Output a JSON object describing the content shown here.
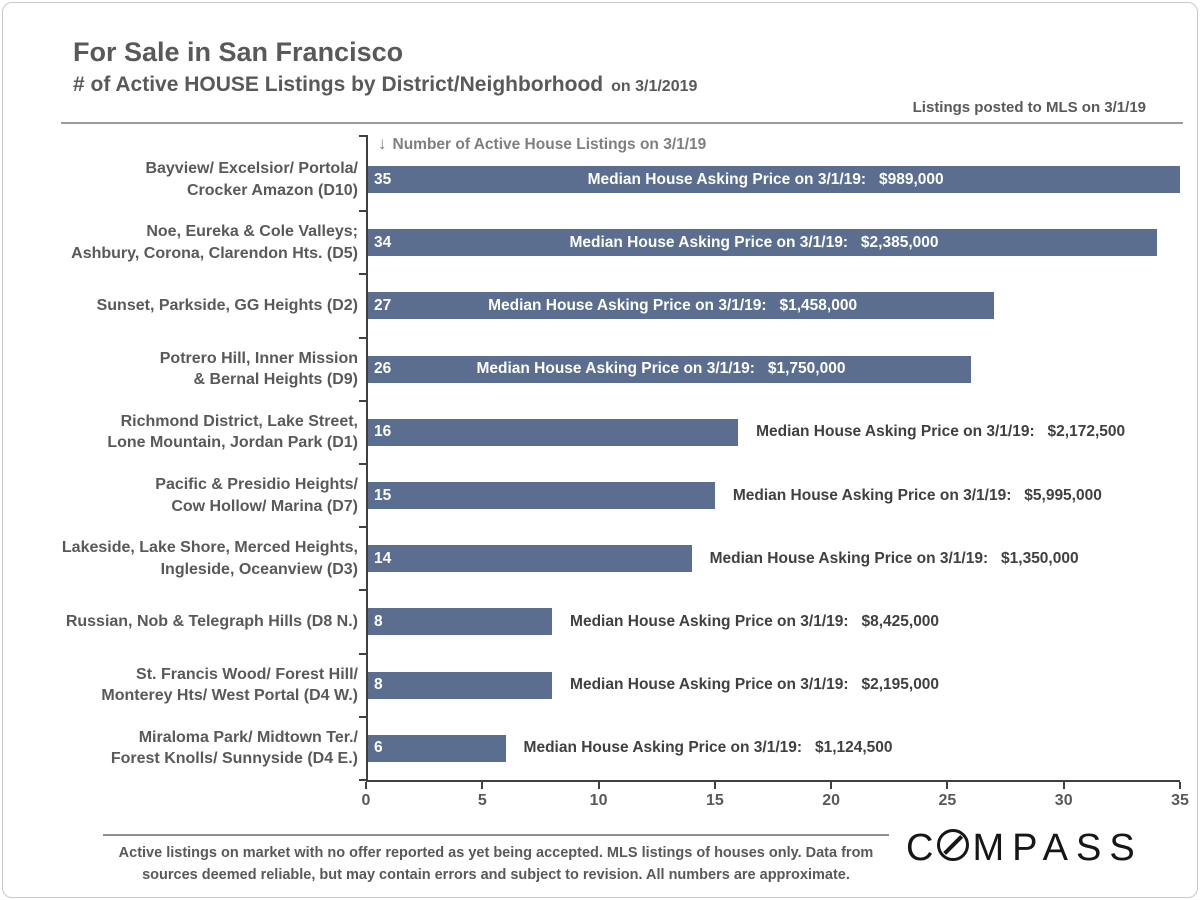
{
  "header": {
    "title": "For Sale in San Francisco",
    "subtitle": "# of Active HOUSE Listings by District/Neighborhood",
    "subtitle_suffix": "on 3/1/2019",
    "mls_note": "Listings posted to MLS on 3/1/19"
  },
  "chart_data": {
    "type": "bar",
    "orientation": "horizontal",
    "axis_annotation_arrow": "↓",
    "axis_annotation": "Number of Active House Listings on 3/1/19",
    "xlim": [
      0,
      35
    ],
    "xticks": [
      0,
      5,
      10,
      15,
      20,
      25,
      30,
      35
    ],
    "grid": false,
    "bar_color": "#5b6e8f",
    "price_label_prefix": "Median House Asking Price on 3/1/19:",
    "categories": [
      "Bayview/ Excelsior/ Portola/ Crocker Amazon (D10)",
      "Noe, Eureka & Cole Valleys; Ashbury, Corona, Clarendon Hts. (D5)",
      "Sunset, Parkside, GG Heights (D2)",
      "Potrero Hill, Inner Mission & Bernal Heights (D9)",
      "Richmond District, Lake Street, Lone Mountain, Jordan Park (D1)",
      "Pacific & Presidio Heights/ Cow Hollow/ Marina (D7)",
      "Lakeside, Lake Shore, Merced Heights, Ingleside, Oceanview (D3)",
      "Russian, Nob & Telegraph Hills (D8 N.)",
      "St. Francis Wood/ Forest Hill/ Monterey Hts/ West Portal (D4 W.)",
      "Miraloma Park/ Midtown Ter./ Forest Knolls/ Sunnyside (D4 E.)"
    ],
    "values": [
      35,
      34,
      27,
      26,
      16,
      15,
      14,
      8,
      8,
      6
    ],
    "median_prices": [
      "$989,000",
      "$2,385,000",
      "$1,458,000",
      "$1,750,000",
      "$2,172,500",
      "$5,995,000",
      "$1,350,000",
      "$8,425,000",
      "$2,195,000",
      "$1,124,500"
    ],
    "rows": [
      {
        "label_lines": [
          "Bayview/ Excelsior/ Portola/",
          "Crocker Amazon (D10)"
        ],
        "value": 35,
        "median_price": "$989,000",
        "price_inside": true
      },
      {
        "label_lines": [
          "Noe, Eureka & Cole Valleys;",
          "Ashbury, Corona, Clarendon Hts. (D5)"
        ],
        "value": 34,
        "median_price": "$2,385,000",
        "price_inside": true
      },
      {
        "label_lines": [
          "Sunset, Parkside, GG Heights (D2)"
        ],
        "value": 27,
        "median_price": "$1,458,000",
        "price_inside": true
      },
      {
        "label_lines": [
          "Potrero Hill, Inner Mission",
          "& Bernal Heights (D9)"
        ],
        "value": 26,
        "median_price": "$1,750,000",
        "price_inside": true
      },
      {
        "label_lines": [
          "Richmond District, Lake Street,",
          "Lone Mountain, Jordan Park (D1)"
        ],
        "value": 16,
        "median_price": "$2,172,500",
        "price_inside": false
      },
      {
        "label_lines": [
          "Pacific & Presidio Heights/",
          "Cow Hollow/ Marina (D7)"
        ],
        "value": 15,
        "median_price": "$5,995,000",
        "price_inside": false
      },
      {
        "label_lines": [
          "Lakeside, Lake Shore, Merced Heights,",
          "Ingleside, Oceanview (D3)"
        ],
        "value": 14,
        "median_price": "$1,350,000",
        "price_inside": false
      },
      {
        "label_lines": [
          "Russian, Nob & Telegraph Hills (D8 N.)"
        ],
        "value": 8,
        "median_price": "$8,425,000",
        "price_inside": false
      },
      {
        "label_lines": [
          "St. Francis Wood/ Forest Hill/",
          "Monterey Hts/ West Portal (D4 W.)"
        ],
        "value": 8,
        "median_price": "$2,195,000",
        "price_inside": false
      },
      {
        "label_lines": [
          "Miraloma Park/ Midtown Ter./",
          "Forest Knolls/ Sunnyside (D4 E.)"
        ],
        "value": 6,
        "median_price": "$1,124,500",
        "price_inside": false
      }
    ]
  },
  "footer": {
    "disclaimer_line1": "Active listings on market with no offer reported as yet being accepted. MLS listings of houses only. Data from",
    "disclaimer_line2": "sources deemed reliable, but may contain errors and subject to revision. All numbers are approximate.",
    "brand": "COMPASS",
    "brand_c": "C",
    "brand_rest": "MPASS"
  }
}
